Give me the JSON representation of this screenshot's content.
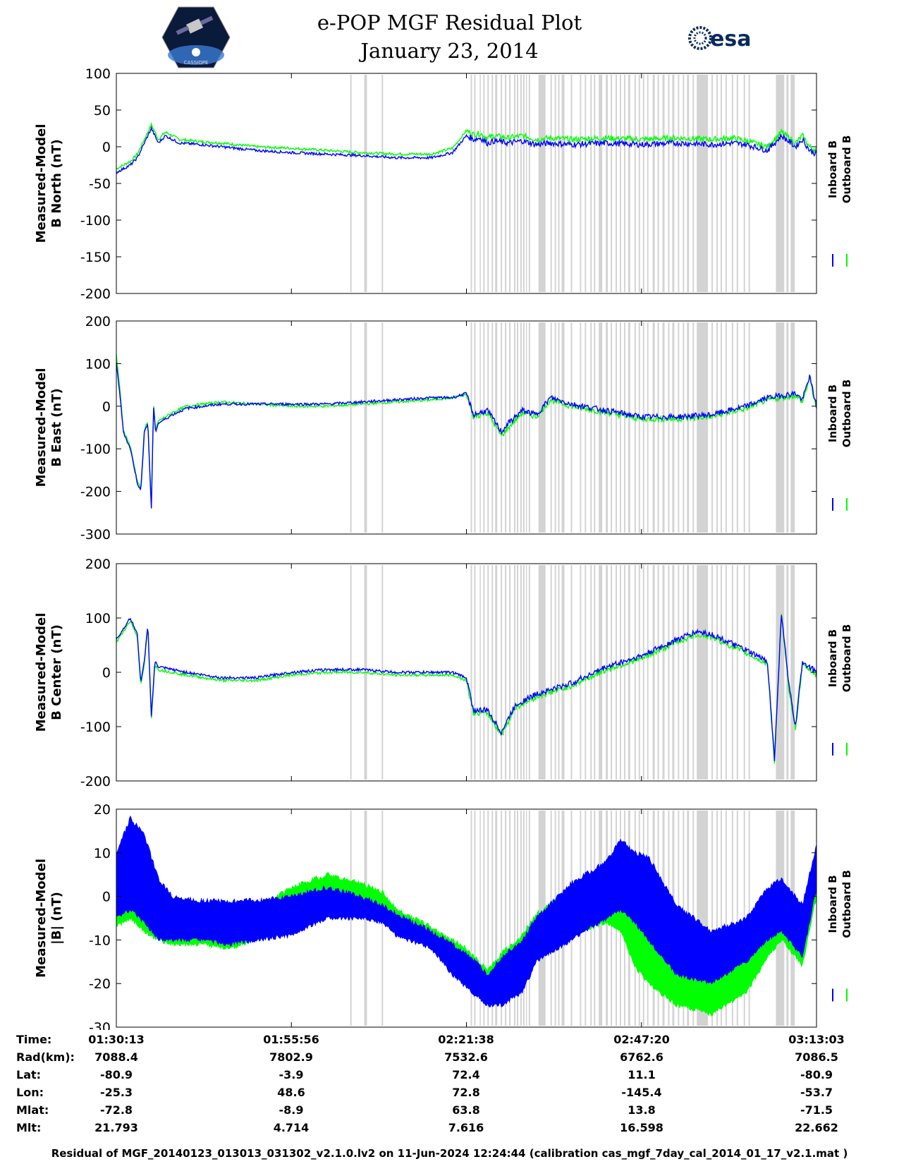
{
  "header": {
    "title": "e-POP MGF Residual Plot",
    "date": "January 23, 2014",
    "left_logo": "CASSIOPE",
    "right_logo": "esa"
  },
  "colors": {
    "inboard": "#0000ff",
    "outboard": "#00ff00",
    "gaps": "#d3d3d3"
  },
  "chart_data": [
    {
      "type": "line",
      "ylabel_line1": "Measured-Model",
      "ylabel_line2": "B North (nT)",
      "ylim": [
        -200,
        100
      ],
      "yticks": [
        "100",
        "50",
        "0",
        "-50",
        "-100",
        "-150",
        "-200"
      ],
      "legend": [
        "Inboard B",
        "Outboard B"
      ],
      "series": [
        {
          "name": "Inboard B",
          "x": [
            0,
            1,
            2,
            3,
            4,
            5,
            6,
            7,
            9,
            12,
            15,
            20,
            25,
            30,
            35,
            40,
            45,
            48,
            50,
            51,
            52,
            53,
            54,
            56,
            58,
            60,
            62,
            65,
            70,
            75,
            80,
            85,
            88,
            90,
            93,
            95,
            97,
            98,
            99,
            100
          ],
          "values": [
            -35,
            -30,
            -25,
            -15,
            5,
            25,
            5,
            15,
            5,
            3,
            0,
            -5,
            -8,
            -10,
            -12,
            -15,
            -15,
            -8,
            15,
            10,
            12,
            5,
            8,
            5,
            8,
            3,
            5,
            3,
            5,
            3,
            5,
            3,
            5,
            3,
            -5,
            15,
            0,
            10,
            -5,
            -10
          ]
        },
        {
          "name": "Outboard B",
          "x": [
            0,
            1,
            2,
            3,
            4,
            5,
            6,
            7,
            9,
            12,
            15,
            20,
            25,
            30,
            35,
            40,
            45,
            48,
            50,
            51,
            52,
            53,
            54,
            56,
            58,
            60,
            62,
            65,
            70,
            75,
            80,
            85,
            88,
            90,
            93,
            95,
            97,
            98,
            99,
            100
          ],
          "values": [
            -30,
            -25,
            -20,
            -10,
            10,
            30,
            10,
            20,
            10,
            7,
            5,
            0,
            -2,
            -5,
            -8,
            -10,
            -10,
            -2,
            22,
            17,
            18,
            12,
            15,
            12,
            15,
            10,
            12,
            10,
            12,
            10,
            12,
            10,
            12,
            8,
            0,
            20,
            5,
            15,
            0,
            -5
          ]
        }
      ]
    },
    {
      "type": "line",
      "ylabel_line1": "Measured-Model",
      "ylabel_line2": "B East (nT)",
      "ylim": [
        -300,
        200
      ],
      "yticks": [
        "200",
        "100",
        "0",
        "-100",
        "-200",
        "-300"
      ],
      "legend": [
        "Inboard B",
        "Outboard B"
      ],
      "series": [
        {
          "name": "Inboard B",
          "x": [
            0,
            0.5,
            1,
            2,
            3,
            3.5,
            4,
            4.5,
            5,
            5.3,
            5.6,
            6,
            8,
            10,
            15,
            20,
            25,
            30,
            35,
            40,
            45,
            48,
            50,
            51,
            53,
            55,
            56,
            58,
            60,
            62,
            65,
            70,
            75,
            80,
            85,
            90,
            93,
            95,
            97,
            98,
            99,
            100
          ],
          "values": [
            100,
            30,
            -60,
            -100,
            -180,
            -200,
            -60,
            -40,
            -240,
            0,
            -60,
            -40,
            -20,
            -5,
            5,
            5,
            5,
            5,
            10,
            15,
            20,
            20,
            30,
            -20,
            -10,
            -60,
            -40,
            -10,
            -20,
            20,
            5,
            -10,
            -25,
            -25,
            -20,
            0,
            20,
            25,
            30,
            15,
            70,
            0
          ]
        },
        {
          "name": "Outboard B",
          "x": [
            0,
            0.5,
            1,
            2,
            3,
            3.5,
            4,
            4.5,
            5,
            5.3,
            5.6,
            6,
            8,
            10,
            15,
            20,
            25,
            30,
            35,
            40,
            45,
            48,
            50,
            51,
            53,
            55,
            56,
            58,
            60,
            62,
            65,
            70,
            75,
            80,
            85,
            90,
            93,
            95,
            97,
            98,
            99,
            100
          ],
          "values": [
            120,
            40,
            -55,
            -95,
            -175,
            -195,
            -55,
            -35,
            -235,
            5,
            -55,
            -35,
            -15,
            0,
            10,
            5,
            0,
            0,
            5,
            10,
            15,
            20,
            28,
            -25,
            -15,
            -70,
            -50,
            -15,
            -25,
            15,
            0,
            -15,
            -30,
            -30,
            -25,
            -5,
            15,
            20,
            25,
            10,
            65,
            -5
          ]
        }
      ]
    },
    {
      "type": "line",
      "ylabel_line1": "Measured-Model",
      "ylabel_line2": "B Center (nT)",
      "ylim": [
        -200,
        200
      ],
      "yticks": [
        "200",
        "100",
        "0",
        "-100",
        "-200"
      ],
      "legend": [
        "Inboard B",
        "Outboard B"
      ],
      "series": [
        {
          "name": "Inboard B",
          "x": [
            0,
            1,
            2,
            3,
            3.5,
            4,
            4.5,
            5,
            5.5,
            6,
            10,
            15,
            20,
            25,
            30,
            35,
            40,
            45,
            48,
            50,
            51,
            53,
            55,
            57,
            60,
            65,
            70,
            75,
            80,
            83,
            85,
            90,
            93,
            94,
            95,
            96,
            97,
            98,
            100
          ],
          "values": [
            60,
            80,
            100,
            70,
            -20,
            20,
            90,
            -80,
            20,
            10,
            0,
            -10,
            -10,
            0,
            5,
            5,
            0,
            0,
            0,
            -10,
            -70,
            -70,
            -110,
            -60,
            -40,
            -20,
            10,
            30,
            60,
            75,
            70,
            40,
            20,
            -160,
            110,
            -20,
            -100,
            20,
            0
          ]
        },
        {
          "name": "Outboard B",
          "x": [
            0,
            1,
            2,
            3,
            3.5,
            4,
            4.5,
            5,
            5.5,
            6,
            10,
            15,
            20,
            25,
            30,
            35,
            40,
            45,
            48,
            50,
            51,
            53,
            55,
            57,
            60,
            65,
            70,
            75,
            80,
            83,
            85,
            90,
            93,
            94,
            95,
            96,
            97,
            98,
            100
          ],
          "values": [
            55,
            75,
            95,
            65,
            -25,
            15,
            85,
            -85,
            15,
            5,
            -5,
            -15,
            -15,
            -5,
            0,
            0,
            -5,
            -5,
            -5,
            -15,
            -75,
            -75,
            -115,
            -65,
            -45,
            -25,
            5,
            25,
            55,
            70,
            65,
            35,
            15,
            -165,
            105,
            -25,
            -105,
            15,
            -5
          ]
        }
      ]
    },
    {
      "type": "area",
      "ylabel_line1": "Measured-Model",
      "ylabel_line2": "|B| (nT)",
      "ylim": [
        -30,
        20
      ],
      "yticks": [
        "20",
        "10",
        "0",
        "-10",
        "-20",
        "-30"
      ],
      "legend": [
        "Inboard B",
        "Outboard B"
      ],
      "series": [
        {
          "name": "Inboard B",
          "x": [
            0,
            2,
            4,
            6,
            8,
            12,
            16,
            20,
            25,
            30,
            35,
            38,
            40,
            45,
            48,
            50,
            53,
            55,
            58,
            60,
            65,
            70,
            72,
            74,
            76,
            80,
            85,
            90,
            93,
            95,
            98,
            100
          ],
          "upper": [
            10,
            18,
            14,
            4,
            0,
            -1,
            -1,
            -1,
            0,
            2,
            0,
            -2,
            -4,
            -8,
            -11,
            -13,
            -18,
            -14,
            -10,
            -5,
            3,
            8,
            13,
            10,
            9,
            -2,
            -8,
            -5,
            2,
            4,
            -2,
            12
          ],
          "lower": [
            -5,
            -3,
            -6,
            -10,
            -10,
            -10,
            -11,
            -10,
            -9,
            -5,
            -5,
            -6,
            -9,
            -12,
            -18,
            -21,
            -25,
            -25,
            -22,
            -15,
            -10,
            -5,
            -3,
            -6,
            -10,
            -18,
            -20,
            -15,
            -10,
            -8,
            -14,
            2
          ]
        },
        {
          "name": "Outboard B",
          "x": [
            0,
            2,
            4,
            6,
            8,
            12,
            16,
            20,
            25,
            30,
            35,
            38,
            40,
            45,
            48,
            50,
            53,
            55,
            58,
            60,
            65,
            70,
            72,
            74,
            76,
            80,
            85,
            90,
            93,
            95,
            98,
            100
          ],
          "upper": [
            2,
            5,
            1,
            -4,
            -6,
            -6,
            -5,
            -3,
            2,
            5,
            3,
            1,
            -3,
            -7,
            -10,
            -12,
            -17,
            -13,
            -9,
            -4,
            2,
            2,
            0,
            -3,
            -5,
            -12,
            -15,
            -12,
            -6,
            -3,
            -8,
            5
          ],
          "lower": [
            -7,
            -5,
            -8,
            -10,
            -11,
            -11,
            -12,
            -10,
            -8,
            -4,
            -4,
            -5,
            -8,
            -11,
            -17,
            -20,
            -24,
            -24,
            -21,
            -14,
            -9,
            -6,
            -8,
            -16,
            -20,
            -25,
            -27,
            -22,
            -14,
            -10,
            -16,
            0
          ]
        }
      ]
    }
  ],
  "gap_intervals": [
    [
      33.4,
      33.6
    ],
    [
      35.4,
      35.8
    ],
    [
      37.9,
      38.1
    ],
    [
      50.6,
      50.8
    ],
    [
      51.1,
      51.3
    ],
    [
      51.9,
      52.0
    ],
    [
      52.4,
      52.6
    ],
    [
      53.0,
      53.2
    ],
    [
      53.6,
      53.8
    ],
    [
      54.1,
      54.4
    ],
    [
      54.9,
      55.1
    ],
    [
      55.5,
      55.7
    ],
    [
      56.1,
      56.3
    ],
    [
      56.8,
      57.0
    ],
    [
      57.2,
      57.4
    ],
    [
      57.7,
      57.9
    ],
    [
      58.1,
      58.3
    ],
    [
      58.5,
      58.6
    ],
    [
      58.9,
      59.1
    ],
    [
      60.3,
      61.3
    ],
    [
      62.0,
      62.2
    ],
    [
      62.6,
      62.8
    ],
    [
      63.1,
      63.3
    ],
    [
      63.6,
      64.0
    ],
    [
      64.9,
      65.1
    ],
    [
      66.2,
      66.4
    ],
    [
      66.9,
      67.1
    ],
    [
      67.7,
      67.9
    ],
    [
      68.2,
      68.4
    ],
    [
      68.9,
      69.4
    ],
    [
      69.9,
      70.2
    ],
    [
      70.6,
      70.8
    ],
    [
      71.3,
      71.5
    ],
    [
      71.9,
      72.1
    ],
    [
      72.5,
      72.7
    ],
    [
      73.1,
      73.4
    ],
    [
      74.0,
      74.2
    ],
    [
      74.6,
      74.8
    ],
    [
      75.2,
      75.4
    ],
    [
      75.8,
      76.0
    ],
    [
      76.6,
      76.9
    ],
    [
      77.3,
      77.5
    ],
    [
      78.0,
      78.3
    ],
    [
      78.8,
      79.0
    ],
    [
      79.4,
      79.7
    ],
    [
      80.2,
      80.4
    ],
    [
      80.9,
      81.1
    ],
    [
      81.5,
      81.8
    ],
    [
      82.3,
      82.5
    ],
    [
      82.9,
      84.5
    ],
    [
      85.0,
      85.2
    ],
    [
      85.7,
      85.9
    ],
    [
      86.3,
      86.5
    ],
    [
      87.0,
      87.2
    ],
    [
      87.9,
      88.1
    ],
    [
      88.6,
      88.8
    ],
    [
      89.6,
      89.8
    ],
    [
      90.3,
      90.5
    ],
    [
      94.2,
      95.4
    ],
    [
      95.7,
      96.0
    ],
    [
      96.3,
      96.9
    ]
  ],
  "x_axis": {
    "rows": [
      {
        "label": "Time:",
        "values": [
          "01:30:13",
          "01:55:56",
          "02:21:38",
          "02:47:20",
          "03:13:03"
        ]
      },
      {
        "label": "Rad(km):",
        "values": [
          "7088.4",
          "7802.9",
          "7532.6",
          "6762.6",
          "7086.5"
        ]
      },
      {
        "label": "Lat:",
        "values": [
          "-80.9",
          "-3.9",
          "72.4",
          "11.1",
          "-80.9"
        ]
      },
      {
        "label": "Lon:",
        "values": [
          "-25.3",
          "48.6",
          "72.8",
          "-145.4",
          "-53.7"
        ]
      },
      {
        "label": "Mlat:",
        "values": [
          "-72.8",
          "-8.9",
          "63.8",
          "13.8",
          "-71.5"
        ]
      },
      {
        "label": "Mlt:",
        "values": [
          "21.793",
          "4.714",
          "7.616",
          "16.598",
          "22.662"
        ]
      }
    ]
  },
  "footer": "Residual of MGF_20140123_013013_031302_v2.1.0.lv2 on 11-Jun-2024 12:24:44 (calibration cas_mgf_7day_cal_2014_01_17_v2.1.mat )"
}
